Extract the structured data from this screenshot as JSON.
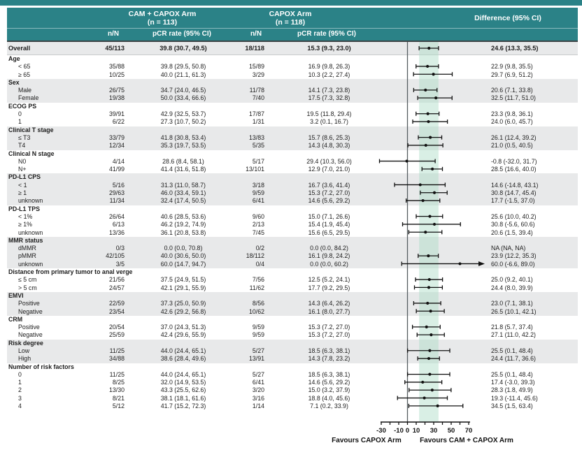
{
  "colors": {
    "teal": "#2b8287",
    "stripe": "#e8e9ea",
    "band": "rgba(170,219,198,0.45)",
    "zero_line": "#565e61",
    "ci_line": "#111111"
  },
  "header": {
    "arm1_title": "CAM + CAPOX Arm",
    "arm1_n": "(n = 113)",
    "arm2_title": "CAPOX Arm",
    "arm2_n": "(n = 118)",
    "diff_title": "Difference (95% CI)",
    "col_nN_arm1": "n/N",
    "col_pcr_arm1": "pCR rate (95% CI)",
    "col_nN_arm2": "n/N",
    "col_pcr_arm2": "pCR rate (95% CI)"
  },
  "footer": {
    "favours_left": "Favours CAPOX Arm",
    "favours_right": "Favours CAM + CAPOX Arm"
  },
  "chart_data": {
    "type": "forest",
    "x_axis": {
      "min": -30,
      "max": 70,
      "tick_step": 10,
      "tick_labels": [
        -30,
        -10,
        0,
        10,
        30,
        50,
        70
      ],
      "reference_line": 0,
      "overall_band": [
        13.3,
        35.5
      ]
    },
    "rows": [
      {
        "type": "overall",
        "label": "Overall",
        "nN1": "45/113",
        "pcr1": "39.8 (30.7, 49.5)",
        "nN2": "18/118",
        "pcr2": "15.3 (9.3, 23.0)",
        "diff": "24.6 (13.3, 35.5)",
        "est": 24.6,
        "lo": 13.3,
        "hi": 35.5,
        "shaded": true,
        "arrow": false
      },
      {
        "type": "group",
        "label": "Age",
        "shaded": false
      },
      {
        "type": "item",
        "label": "< 65",
        "nN1": "35/88",
        "pcr1": "39.8 (29.5, 50.8)",
        "nN2": "15/89",
        "pcr2": "16.9 (9.8, 26.3)",
        "diff": "22.9 (9.8, 35.5)",
        "est": 22.9,
        "lo": 9.8,
        "hi": 35.5,
        "shaded": false,
        "arrow": false
      },
      {
        "type": "item",
        "label": "≥ 65",
        "nN1": "10/25",
        "pcr1": "40.0 (21.1, 61.3)",
        "nN2": "3/29",
        "pcr2": "10.3 (2.2, 27.4)",
        "diff": "29.7 (6.9, 51.2)",
        "est": 29.7,
        "lo": 6.9,
        "hi": 51.2,
        "shaded": false,
        "arrow": false
      },
      {
        "type": "group",
        "label": "Sex",
        "shaded": true
      },
      {
        "type": "item",
        "label": "Male",
        "nN1": "26/75",
        "pcr1": "34.7 (24.0, 46.5)",
        "nN2": "11/78",
        "pcr2": "14.1 (7.3, 23.8)",
        "diff": "20.6 (7.1, 33.8)",
        "est": 20.6,
        "lo": 7.1,
        "hi": 33.8,
        "shaded": true,
        "arrow": false
      },
      {
        "type": "item",
        "label": "Female",
        "nN1": "19/38",
        "pcr1": "50.0 (33.4, 66.6)",
        "nN2": "7/40",
        "pcr2": "17.5 (7.3, 32.8)",
        "diff": "32.5 (11.7, 51.0)",
        "est": 32.5,
        "lo": 11.7,
        "hi": 51.0,
        "shaded": true,
        "arrow": false
      },
      {
        "type": "group",
        "label": "ECOG PS",
        "shaded": false
      },
      {
        "type": "item",
        "label": "0",
        "nN1": "39/91",
        "pcr1": "42.9 (32.5, 53.7)",
        "nN2": "17/87",
        "pcr2": "19.5 (11.8, 29.4)",
        "diff": "23.3 (9.8, 36.1)",
        "est": 23.3,
        "lo": 9.8,
        "hi": 36.1,
        "shaded": false,
        "arrow": false
      },
      {
        "type": "item",
        "label": "1",
        "nN1": "6/22",
        "pcr1": "27.3 (10.7, 50.2)",
        "nN2": "1/31",
        "pcr2": "3.2 (0.1, 16.7)",
        "diff": "24.0 (6.0, 45.7)",
        "est": 24.0,
        "lo": 6.0,
        "hi": 45.7,
        "shaded": false,
        "arrow": false
      },
      {
        "type": "group",
        "label": "Clinical T stage",
        "shaded": true
      },
      {
        "type": "item",
        "label": "≤ T3",
        "nN1": "33/79",
        "pcr1": "41.8 (30.8, 53.4)",
        "nN2": "13/83",
        "pcr2": "15.7 (8.6, 25.3)",
        "diff": "26.1 (12.4, 39.2)",
        "est": 26.1,
        "lo": 12.4,
        "hi": 39.2,
        "shaded": true,
        "arrow": false
      },
      {
        "type": "item",
        "label": "T4",
        "nN1": "12/34",
        "pcr1": "35.3 (19.7, 53.5)",
        "nN2": "5/35",
        "pcr2": "14.3 (4.8, 30.3)",
        "diff": "21.0 (0.5, 40.5)",
        "est": 21.0,
        "lo": 0.5,
        "hi": 40.5,
        "shaded": true,
        "arrow": false
      },
      {
        "type": "group",
        "label": "Clinical N stage",
        "shaded": false
      },
      {
        "type": "item",
        "label": "N0",
        "nN1": "4/14",
        "pcr1": "28.6 (8.4, 58.1)",
        "nN2": "5/17",
        "pcr2": "29.4 (10.3, 56.0)",
        "diff": "-0.8 (-32.0, 31.7)",
        "est": -0.8,
        "lo": -32.0,
        "hi": 31.7,
        "shaded": false,
        "arrow": false
      },
      {
        "type": "item",
        "label": "N+",
        "nN1": "41/99",
        "pcr1": "41.4 (31.6, 51.8)",
        "nN2": "13/101",
        "pcr2": "12.9 (7.0, 21.0)",
        "diff": "28.5 (16.6, 40.0)",
        "est": 28.5,
        "lo": 16.6,
        "hi": 40.0,
        "shaded": false,
        "arrow": false
      },
      {
        "type": "group",
        "label": "PD-L1 CPS",
        "shaded": true
      },
      {
        "type": "item",
        "label": "< 1",
        "nN1": "5/16",
        "pcr1": "31.3 (11.0, 58.7)",
        "nN2": "3/18",
        "pcr2": "16.7 (3.6, 41.4)",
        "diff": "14.6 (-14.8, 43.1)",
        "est": 14.6,
        "lo": -14.8,
        "hi": 43.1,
        "shaded": true,
        "arrow": false
      },
      {
        "type": "item",
        "label": "≥ 1",
        "nN1": "29/63",
        "pcr1": "46.0 (33.4, 59.1)",
        "nN2": "9/59",
        "pcr2": "15.3 (7.2, 27.0)",
        "diff": "30.8 (14.7, 45.4)",
        "est": 30.8,
        "lo": 14.7,
        "hi": 45.4,
        "shaded": true,
        "arrow": false
      },
      {
        "type": "item",
        "label": "unknown",
        "nN1": "11/34",
        "pcr1": "32.4 (17.4, 50.5)",
        "nN2": "6/41",
        "pcr2": "14.6 (5.6, 29.2)",
        "diff": "17.7 (-1.5, 37.0)",
        "est": 17.7,
        "lo": -1.5,
        "hi": 37.0,
        "shaded": true,
        "arrow": false
      },
      {
        "type": "group",
        "label": "PD-L1 TPS",
        "shaded": false
      },
      {
        "type": "item",
        "label": "< 1%",
        "nN1": "26/64",
        "pcr1": "40.6 (28.5, 53.6)",
        "nN2": "9/60",
        "pcr2": "15.0 (7.1, 26.6)",
        "diff": "25.6 (10.0, 40.2)",
        "est": 25.6,
        "lo": 10.0,
        "hi": 40.2,
        "shaded": false,
        "arrow": false
      },
      {
        "type": "item",
        "label": "≥ 1%",
        "nN1": "6/13",
        "pcr1": "46.2 (19.2, 74.9)",
        "nN2": "2/13",
        "pcr2": "15.4 (1.9, 45.4)",
        "diff": "30.8 (-5.6, 60.6)",
        "est": 30.8,
        "lo": -5.6,
        "hi": 60.6,
        "shaded": false,
        "arrow": false
      },
      {
        "type": "item",
        "label": "unknown",
        "nN1": "13/36",
        "pcr1": "36.1 (20.8, 53.8)",
        "nN2": "7/45",
        "pcr2": "15.6 (6.5, 29.5)",
        "diff": "20.6 (1.5, 39.4)",
        "est": 20.6,
        "lo": 1.5,
        "hi": 39.4,
        "shaded": false,
        "arrow": false
      },
      {
        "type": "group",
        "label": "MMR status",
        "shaded": true
      },
      {
        "type": "item",
        "label": "dMMR",
        "nN1": "0/3",
        "pcr1": "0.0 (0.0, 70.8)",
        "nN2": "0/2",
        "pcr2": "0.0 (0.0, 84.2)",
        "diff": "NA (NA, NA)",
        "est": null,
        "lo": null,
        "hi": null,
        "shaded": true,
        "arrow": false
      },
      {
        "type": "item",
        "label": "pMMR",
        "nN1": "42/105",
        "pcr1": "40.0 (30.6, 50.0)",
        "nN2": "18/112",
        "pcr2": "16.1 (9.8, 24.2)",
        "diff": "23.9 (12.2, 35.3)",
        "est": 23.9,
        "lo": 12.2,
        "hi": 35.3,
        "shaded": true,
        "arrow": false
      },
      {
        "type": "item",
        "label": "unknown",
        "nN1": "3/5",
        "pcr1": "60.0 (14.7, 94.7)",
        "nN2": "0/4",
        "pcr2": "0.0 (0.0, 60.2)",
        "diff": "60.0 (-6.6, 89.0)",
        "est": 60.0,
        "lo": -6.6,
        "hi": 89.0,
        "shaded": true,
        "arrow": true
      },
      {
        "type": "group",
        "label": "Distance from primary tumor to anal verge",
        "shaded": false
      },
      {
        "type": "item",
        "label": "≤ 5 cm",
        "nN1": "21/56",
        "pcr1": "37.5 (24.9, 51.5)",
        "nN2": "7/56",
        "pcr2": "12.5 (5.2, 24.1)",
        "diff": "25.0 (9.2, 40.1)",
        "est": 25.0,
        "lo": 9.2,
        "hi": 40.1,
        "shaded": false,
        "arrow": false
      },
      {
        "type": "item",
        "label": "> 5 cm",
        "nN1": "24/57",
        "pcr1": "42.1 (29.1, 55.9)",
        "nN2": "11/62",
        "pcr2": "17.7 (9.2, 29.5)",
        "diff": "24.4 (8.0, 39.9)",
        "est": 24.4,
        "lo": 8.0,
        "hi": 39.9,
        "shaded": false,
        "arrow": false
      },
      {
        "type": "group",
        "label": "EMVI",
        "shaded": true
      },
      {
        "type": "item",
        "label": "Positive",
        "nN1": "22/59",
        "pcr1": "37.3 (25.0, 50.9)",
        "nN2": "8/56",
        "pcr2": "14.3 (6.4, 26.2)",
        "diff": "23.0 (7.1, 38.1)",
        "est": 23.0,
        "lo": 7.1,
        "hi": 38.1,
        "shaded": true,
        "arrow": false
      },
      {
        "type": "item",
        "label": "Negative",
        "nN1": "23/54",
        "pcr1": "42.6 (29.2, 56.8)",
        "nN2": "10/62",
        "pcr2": "16.1 (8.0, 27.7)",
        "diff": "26.5 (10.1, 42.1)",
        "est": 26.5,
        "lo": 10.1,
        "hi": 42.1,
        "shaded": true,
        "arrow": false
      },
      {
        "type": "group",
        "label": "CRM",
        "shaded": false
      },
      {
        "type": "item",
        "label": "Positive",
        "nN1": "20/54",
        "pcr1": "37.0 (24.3, 51.3)",
        "nN2": "9/59",
        "pcr2": "15.3 (7.2, 27.0)",
        "diff": "21.8 (5.7, 37.4)",
        "est": 21.8,
        "lo": 5.7,
        "hi": 37.4,
        "shaded": false,
        "arrow": false
      },
      {
        "type": "item",
        "label": "Negative",
        "nN1": "25/59",
        "pcr1": "42.4 (29.6, 55.9)",
        "nN2": "9/59",
        "pcr2": "15.3 (7.2, 27.0)",
        "diff": "27.1 (11.0, 42.2)",
        "est": 27.1,
        "lo": 11.0,
        "hi": 42.2,
        "shaded": false,
        "arrow": false
      },
      {
        "type": "group",
        "label": "Risk degree",
        "shaded": true
      },
      {
        "type": "item",
        "label": "Low",
        "nN1": "11/25",
        "pcr1": "44.0 (24.4, 65.1)",
        "nN2": "5/27",
        "pcr2": "18.5 (6.3, 38.1)",
        "diff": "25.5 (0.1, 48.4)",
        "est": 25.5,
        "lo": 0.1,
        "hi": 48.4,
        "shaded": true,
        "arrow": false
      },
      {
        "type": "item",
        "label": "High",
        "nN1": "34/88",
        "pcr1": "38.6 (28.4, 49.6)",
        "nN2": "13/91",
        "pcr2": "14.3 (7.8, 23.2)",
        "diff": "24.4 (11.7, 36.6)",
        "est": 24.4,
        "lo": 11.7,
        "hi": 36.6,
        "shaded": true,
        "arrow": false
      },
      {
        "type": "group",
        "label": "Number of risk factors",
        "shaded": false
      },
      {
        "type": "item",
        "label": "0",
        "nN1": "11/25",
        "pcr1": "44.0 (24.4, 65.1)",
        "nN2": "5/27",
        "pcr2": "18.5 (6.3, 38.1)",
        "diff": "25.5 (0.1, 48.4)",
        "est": 25.5,
        "lo": 0.1,
        "hi": 48.4,
        "shaded": false,
        "arrow": false
      },
      {
        "type": "item",
        "label": "1",
        "nN1": "8/25",
        "pcr1": "32.0 (14.9, 53.5)",
        "nN2": "6/41",
        "pcr2": "14.6 (5.6, 29.2)",
        "diff": "17.4 (-3.0, 39.3)",
        "est": 17.4,
        "lo": -3.0,
        "hi": 39.3,
        "shaded": false,
        "arrow": false
      },
      {
        "type": "item",
        "label": "2",
        "nN1": "13/30",
        "pcr1": "43.3 (25.5, 62.6)",
        "nN2": "3/20",
        "pcr2": "15.0 (3.2, 37.9)",
        "diff": "28.3 (1.8, 49.9)",
        "est": 28.3,
        "lo": 1.8,
        "hi": 49.9,
        "shaded": false,
        "arrow": false
      },
      {
        "type": "item",
        "label": "3",
        "nN1": "8/21",
        "pcr1": "38.1 (18.1, 61.6)",
        "nN2": "3/16",
        "pcr2": "18.8 (4.0, 45.6)",
        "diff": "19.3 (-11.4, 45.6)",
        "est": 19.3,
        "lo": -11.4,
        "hi": 45.6,
        "shaded": false,
        "arrow": false
      },
      {
        "type": "item",
        "label": "4",
        "nN1": "5/12",
        "pcr1": "41.7 (15.2, 72.3)",
        "nN2": "1/14",
        "pcr2": "7.1 (0.2, 33.9)",
        "diff": "34.5 (1.5, 63.4)",
        "est": 34.5,
        "lo": 1.5,
        "hi": 63.4,
        "shaded": false,
        "arrow": false
      }
    ]
  }
}
